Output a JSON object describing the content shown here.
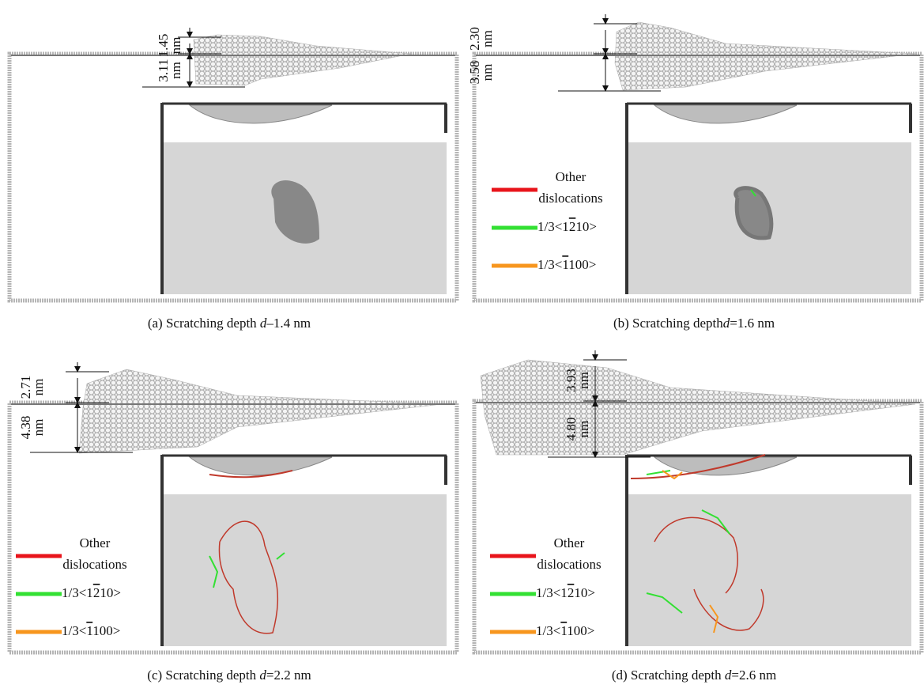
{
  "panels": [
    {
      "caption": {
        "prefix": "(a) Scratching depth ",
        "variable": "d",
        "suffix": "–1.4 nm"
      },
      "dimensions": [
        {
          "value": "1.45",
          "unit": "nm"
        },
        {
          "value": "3.11",
          "unit": "nm"
        }
      ]
    },
    {
      "caption": {
        "prefix": "(b)  Scratching depth",
        "variable": "d",
        "suffix": "=1.6 nm"
      },
      "dimensions": [
        {
          "value": "2.30",
          "unit": "nm"
        },
        {
          "value": "3.58",
          "unit": "nm"
        }
      ],
      "legend": [
        {
          "lines": [
            "Other",
            "dislocations"
          ],
          "color": "#e8141b"
        },
        {
          "prefix": "1/3<1",
          "overline": "2",
          "suffix": "10>",
          "color": "#33e033"
        },
        {
          "prefix": "1/3<",
          "overline": "1",
          "suffix": "100>",
          "color": "#f7961e"
        }
      ]
    },
    {
      "caption": {
        "prefix": "(c)  Scratching depth ",
        "variable": "d",
        "suffix": "=2.2 nm"
      },
      "dimensions": [
        {
          "value": "2.71",
          "unit": "nm"
        },
        {
          "value": "4.38",
          "unit": "nm"
        }
      ],
      "legend": [
        {
          "lines": [
            "Other",
            "dislocations"
          ],
          "color": "#e8141b"
        },
        {
          "prefix": "1/3<1",
          "overline": "2",
          "suffix": "10>",
          "color": "#33e033"
        },
        {
          "prefix": "1/3<",
          "overline": "1",
          "suffix": "100>",
          "color": "#f7961e"
        }
      ]
    },
    {
      "caption": {
        "prefix": "(d) Scratching depth ",
        "variable": "d",
        "suffix": "=2.6 nm"
      },
      "dimensions": [
        {
          "value": "3.93",
          "unit": "nm"
        },
        {
          "value": "4.80",
          "unit": "nm"
        }
      ],
      "legend": [
        {
          "lines": [
            "Other",
            "dislocations"
          ],
          "color": "#e8141b"
        },
        {
          "prefix": "1/3<1",
          "overline": "2",
          "suffix": "10>",
          "color": "#33e033"
        },
        {
          "prefix": "1/3<",
          "overline": "1",
          "suffix": "100>",
          "color": "#f7961e"
        }
      ]
    }
  ]
}
